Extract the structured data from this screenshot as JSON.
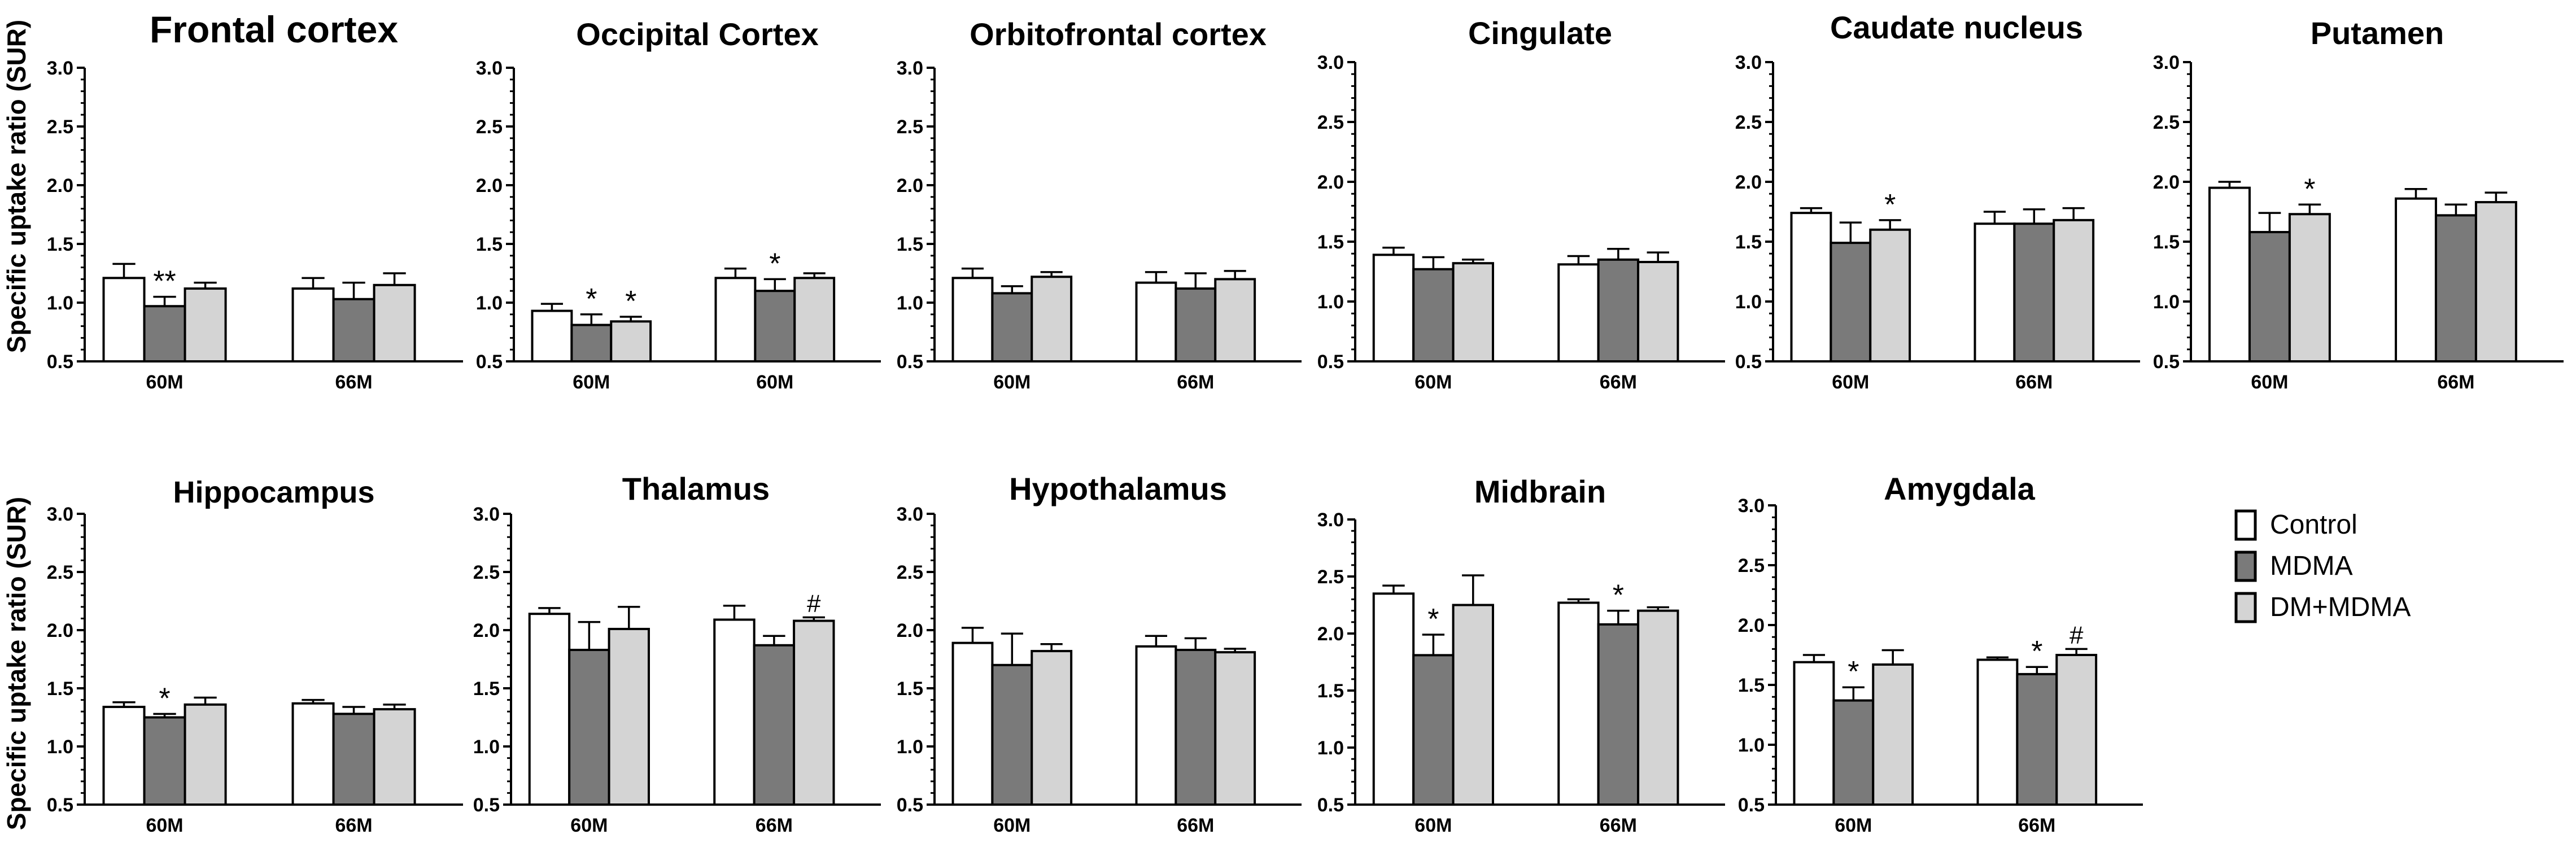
{
  "figure": {
    "ylabel": "Specific uptake ratio (SUR)",
    "legend": [
      {
        "label": "Control",
        "fill": "#ffffff"
      },
      {
        "label": "MDMA",
        "fill": "#7a7a7a"
      },
      {
        "label": "DM+MDMA",
        "fill": "#d4d4d4"
      }
    ]
  },
  "chart_data": [
    {
      "type": "bar",
      "title": "Frontal cortex",
      "ylim": [
        0.5,
        3.0
      ],
      "yticks": [
        "0.5",
        "1.0",
        "1.5",
        "2.0",
        "2.5",
        "3.0"
      ],
      "categories": [
        "60M",
        "66M"
      ],
      "series": [
        {
          "name": "Control",
          "values": [
            1.21,
            1.12
          ],
          "errors": [
            0.12,
            0.09
          ]
        },
        {
          "name": "MDMA",
          "values": [
            0.97,
            1.03
          ],
          "errors": [
            0.08,
            0.14
          ]
        },
        {
          "name": "DM+MDMA",
          "values": [
            1.12,
            1.15
          ],
          "errors": [
            0.05,
            0.1
          ]
        }
      ],
      "annotations": [
        {
          "category": 0,
          "series": 1,
          "text": "**"
        }
      ]
    },
    {
      "type": "bar",
      "title": "Occipital Cortex",
      "ylim": [
        0.5,
        3.0
      ],
      "yticks": [
        "0.5",
        "1.0",
        "1.5",
        "2.0",
        "2.5",
        "3.0"
      ],
      "categories": [
        "60M",
        "60M"
      ],
      "series": [
        {
          "name": "Control",
          "values": [
            0.93,
            1.21
          ],
          "errors": [
            0.06,
            0.08
          ]
        },
        {
          "name": "MDMA",
          "values": [
            0.81,
            1.1
          ],
          "errors": [
            0.09,
            0.1
          ]
        },
        {
          "name": "DM+MDMA",
          "values": [
            0.84,
            1.21
          ],
          "errors": [
            0.04,
            0.04
          ]
        }
      ],
      "annotations": [
        {
          "category": 0,
          "series": 1,
          "text": "*"
        },
        {
          "category": 0,
          "series": 2,
          "text": "*"
        },
        {
          "category": 1,
          "series": 1,
          "text": "*"
        }
      ]
    },
    {
      "type": "bar",
      "title": "Orbitofrontal  cortex",
      "ylim": [
        0.5,
        3.0
      ],
      "yticks": [
        "0.5",
        "1.0",
        "1.5",
        "2.0",
        "2.5",
        "3.0"
      ],
      "categories": [
        "60M",
        "66M"
      ],
      "series": [
        {
          "name": "Control",
          "values": [
            1.21,
            1.17
          ],
          "errors": [
            0.08,
            0.09
          ]
        },
        {
          "name": "MDMA",
          "values": [
            1.08,
            1.12
          ],
          "errors": [
            0.06,
            0.13
          ]
        },
        {
          "name": "DM+MDMA",
          "values": [
            1.22,
            1.2
          ],
          "errors": [
            0.04,
            0.07
          ]
        }
      ],
      "annotations": []
    },
    {
      "type": "bar",
      "title": "Cingulate",
      "ylim": [
        0.5,
        3.0
      ],
      "yticks": [
        "0.5",
        "1.0",
        "1.5",
        "2.0",
        "2.5",
        "3.0"
      ],
      "categories": [
        "60M",
        "66M"
      ],
      "series": [
        {
          "name": "Control",
          "values": [
            1.39,
            1.31
          ],
          "errors": [
            0.06,
            0.07
          ]
        },
        {
          "name": "MDMA",
          "values": [
            1.27,
            1.35
          ],
          "errors": [
            0.1,
            0.09
          ]
        },
        {
          "name": "DM+MDMA",
          "values": [
            1.32,
            1.33
          ],
          "errors": [
            0.03,
            0.08
          ]
        }
      ],
      "annotations": []
    },
    {
      "type": "bar",
      "title": "Caudate nucleus",
      "ylim": [
        0.5,
        3.0
      ],
      "yticks": [
        "0.5",
        "1.0",
        "1.5",
        "2.0",
        "2.5",
        "3.0"
      ],
      "categories": [
        "60M",
        "66M"
      ],
      "series": [
        {
          "name": "Control",
          "values": [
            1.74,
            1.65
          ],
          "errors": [
            0.04,
            0.1
          ]
        },
        {
          "name": "MDMA",
          "values": [
            1.49,
            1.65
          ],
          "errors": [
            0.17,
            0.12
          ]
        },
        {
          "name": "DM+MDMA",
          "values": [
            1.6,
            1.68
          ],
          "errors": [
            0.08,
            0.1
          ]
        }
      ],
      "annotations": [
        {
          "category": 0,
          "series": 2,
          "text": "*"
        }
      ]
    },
    {
      "type": "bar",
      "title": "Putamen",
      "ylim": [
        0.5,
        3.0
      ],
      "yticks": [
        "0.5",
        "1.0",
        "1.5",
        "2.0",
        "2.5",
        "3.0"
      ],
      "categories": [
        "60M",
        "66M"
      ],
      "series": [
        {
          "name": "Control",
          "values": [
            1.95,
            1.86
          ],
          "errors": [
            0.05,
            0.08
          ]
        },
        {
          "name": "MDMA",
          "values": [
            1.58,
            1.72
          ],
          "errors": [
            0.16,
            0.09
          ]
        },
        {
          "name": "DM+MDMA",
          "values": [
            1.73,
            1.83
          ],
          "errors": [
            0.08,
            0.08
          ]
        }
      ],
      "annotations": [
        {
          "category": 0,
          "series": 2,
          "text": "*"
        }
      ]
    },
    {
      "type": "bar",
      "title": "Hippocampus",
      "ylim": [
        0.5,
        3.0
      ],
      "yticks": [
        "0.5",
        "1.0",
        "1.5",
        "2.0",
        "2.5",
        "3.0"
      ],
      "categories": [
        "60M",
        "66M"
      ],
      "series": [
        {
          "name": "Control",
          "values": [
            1.34,
            1.37
          ],
          "errors": [
            0.04,
            0.03
          ]
        },
        {
          "name": "MDMA",
          "values": [
            1.25,
            1.28
          ],
          "errors": [
            0.03,
            0.06
          ]
        },
        {
          "name": "DM+MDMA",
          "values": [
            1.36,
            1.32
          ],
          "errors": [
            0.06,
            0.04
          ]
        }
      ],
      "annotations": [
        {
          "category": 0,
          "series": 1,
          "text": "*"
        }
      ]
    },
    {
      "type": "bar",
      "title": "Thalamus",
      "ylim": [
        0.5,
        3.0
      ],
      "yticks": [
        "0.5",
        "1.0",
        "1.5",
        "2.0",
        "2.5",
        "3.0"
      ],
      "categories": [
        "60M",
        "66M"
      ],
      "series": [
        {
          "name": "Control",
          "values": [
            2.14,
            2.09
          ],
          "errors": [
            0.05,
            0.12
          ]
        },
        {
          "name": "MDMA",
          "values": [
            1.83,
            1.87
          ],
          "errors": [
            0.24,
            0.08
          ]
        },
        {
          "name": "DM+MDMA",
          "values": [
            2.01,
            2.08
          ],
          "errors": [
            0.19,
            0.03
          ]
        }
      ],
      "annotations": [
        {
          "category": 1,
          "series": 2,
          "text": "#"
        }
      ]
    },
    {
      "type": "bar",
      "title": "Hypothalamus",
      "ylim": [
        0.5,
        3.0
      ],
      "yticks": [
        "0.5",
        "1.0",
        "1.5",
        "2.0",
        "2.5",
        "3.0"
      ],
      "categories": [
        "60M",
        "66M"
      ],
      "series": [
        {
          "name": "Control",
          "values": [
            1.89,
            1.86
          ],
          "errors": [
            0.13,
            0.09
          ]
        },
        {
          "name": "MDMA",
          "values": [
            1.7,
            1.83
          ],
          "errors": [
            0.27,
            0.1
          ]
        },
        {
          "name": "DM+MDMA",
          "values": [
            1.82,
            1.81
          ],
          "errors": [
            0.06,
            0.03
          ]
        }
      ],
      "annotations": []
    },
    {
      "type": "bar",
      "title": "Midbrain",
      "ylim": [
        0.5,
        3.0
      ],
      "yticks": [
        "0.5",
        "1.0",
        "1.5",
        "2.0",
        "2.5",
        "3.0"
      ],
      "categories": [
        "60M",
        "66M"
      ],
      "series": [
        {
          "name": "Control",
          "values": [
            2.35,
            2.27
          ],
          "errors": [
            0.07,
            0.03
          ]
        },
        {
          "name": "MDMA",
          "values": [
            1.81,
            2.08
          ],
          "errors": [
            0.18,
            0.12
          ]
        },
        {
          "name": "DM+MDMA",
          "values": [
            2.25,
            2.2
          ],
          "errors": [
            0.26,
            0.03
          ]
        }
      ],
      "annotations": [
        {
          "category": 0,
          "series": 1,
          "text": "*"
        },
        {
          "category": 1,
          "series": 1,
          "text": "*"
        }
      ]
    },
    {
      "type": "bar",
      "title": "Amygdala",
      "ylim": [
        0.5,
        3.0
      ],
      "yticks": [
        "0.5",
        "1.0",
        "1.5",
        "2.0",
        "2.5",
        "3.0"
      ],
      "categories": [
        "60M",
        "66M"
      ],
      "series": [
        {
          "name": "Control",
          "values": [
            1.69,
            1.71
          ],
          "errors": [
            0.06,
            0.02
          ]
        },
        {
          "name": "MDMA",
          "values": [
            1.37,
            1.59
          ],
          "errors": [
            0.11,
            0.06
          ]
        },
        {
          "name": "DM+MDMA",
          "values": [
            1.67,
            1.75
          ],
          "errors": [
            0.12,
            0.05
          ]
        }
      ],
      "annotations": [
        {
          "category": 0,
          "series": 1,
          "text": "*"
        },
        {
          "category": 1,
          "series": 1,
          "text": "*"
        },
        {
          "category": 1,
          "series": 2,
          "text": "#"
        }
      ]
    }
  ]
}
